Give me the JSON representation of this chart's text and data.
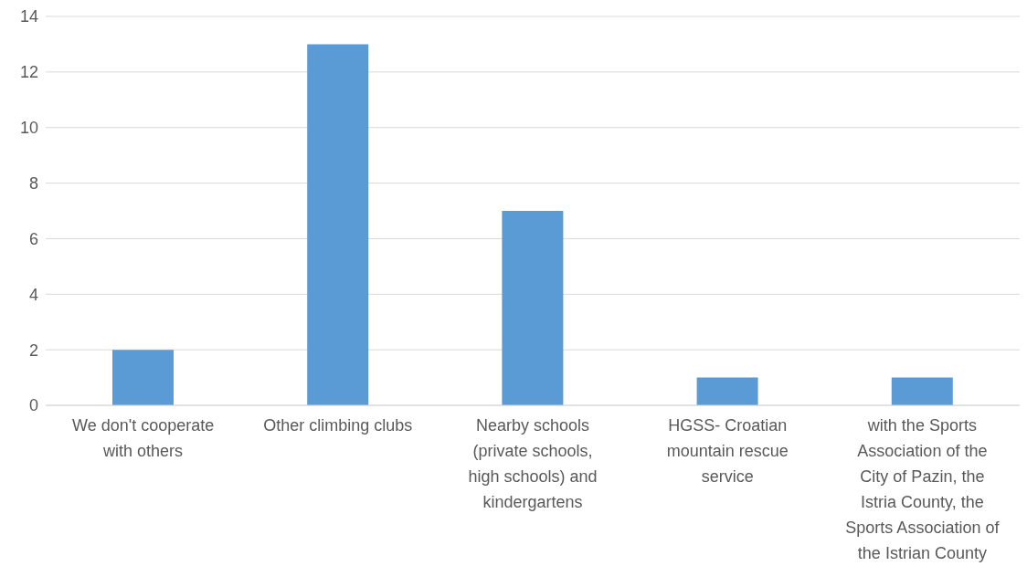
{
  "chart_data": {
    "type": "bar",
    "categories": [
      "We don't cooperate with others",
      "Other climbing clubs",
      "Nearby schools (private schools, high schools) and kindergartens",
      "HGSS- Croatian mountain rescue service",
      "with the Sports Association of the City of Pazin, the Istria County, the Sports Association of the Istrian County"
    ],
    "values": [
      2,
      13,
      7,
      1,
      1
    ],
    "color": "#5b9bd5",
    "ylim": [
      0,
      14
    ],
    "yticks": [
      0,
      2,
      4,
      6,
      8,
      10,
      12,
      14
    ],
    "grid": "y"
  }
}
